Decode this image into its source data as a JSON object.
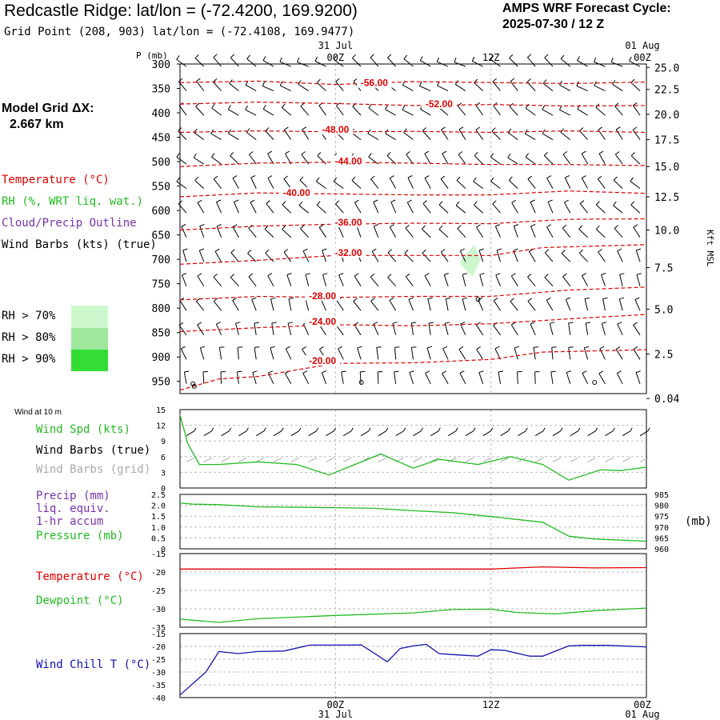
{
  "header": {
    "title": "Redcastle Ridge:  lat/lon = (-72.4200, 169.9200)",
    "grid_point": "Grid Point (208, 903) lat/lon = (-72.4108, 169.9477)",
    "forecast_label": "AMPS WRF Forecast Cycle:",
    "forecast_cycle": "2025-07-30 / 12  Z",
    "model_grid_label": "Model Grid ΔX:",
    "model_grid_value": "2.667 km"
  },
  "legend": {
    "temperature": "Temperature (°C)",
    "rh": "RH (%, WRT liq. wat.)",
    "cloud": "Cloud/Precip Outline",
    "wind_barbs": "Wind Barbs (kts) (true)",
    "rh70": "RH > 70%",
    "rh80": "RH > 80%",
    "rh90": "RH > 90%"
  },
  "colors": {
    "temperature": "#dd0000",
    "rh": "#22bb22",
    "cloud": "#7733aa",
    "windchill": "#1111aa",
    "rh70": "#ccf7cc",
    "rh80": "#9de89d",
    "rh90": "#33dd33",
    "grid": "#bbbbbb",
    "gray_barb": "#aaaaaa"
  },
  "time_axis": {
    "top_date_labels": [
      "31 Jul",
      "01 Aug"
    ],
    "tick_labels": [
      "00Z",
      "12Z",
      "00Z"
    ],
    "bottom_date_labels": [
      "31 Jul",
      "01 Aug"
    ],
    "hours": [
      12,
      24,
      36,
      48
    ],
    "start_hour": 12,
    "end_hour": 48
  },
  "chart_data": [
    {
      "type": "line",
      "panel": "upper-air cross-section",
      "y_axis_title": "P (mb)",
      "pressure_ticks": [
        300,
        350,
        400,
        450,
        500,
        550,
        600,
        650,
        700,
        750,
        800,
        850,
        900,
        950
      ],
      "ylim": [
        975,
        300
      ],
      "right_axis_title": "Kft MSL",
      "height_ticks": [
        "25.0",
        "22.5",
        "20.0",
        "17.5",
        "15.0",
        "12.5",
        "10.0",
        "7.5",
        "5.0",
        "2.5",
        "0.04"
      ],
      "height_tick_pressures": [
        307,
        352,
        403,
        455,
        510,
        572,
        640,
        717,
        802,
        894,
        985
      ],
      "isotherm_labels": [
        {
          "label": "-56.00",
          "hour": 27,
          "p": 342
        },
        {
          "label": "-52.00",
          "hour": 32,
          "p": 385
        },
        {
          "label": "-48.00",
          "hour": 24,
          "p": 438
        },
        {
          "label": "-44.00",
          "hour": 25,
          "p": 502
        },
        {
          "label": "-40.00",
          "hour": 21,
          "p": 567
        },
        {
          "label": "-36.00",
          "hour": 25,
          "p": 628
        },
        {
          "label": "-32.00",
          "hour": 25,
          "p": 690
        },
        {
          "label": "-28.00",
          "hour": 23,
          "p": 778
        },
        {
          "label": "-24.00",
          "hour": 23,
          "p": 831
        },
        {
          "label": "-20.00",
          "hour": 23,
          "p": 911
        }
      ],
      "isotherms": [
        {
          "hour": [
            12,
            18,
            24,
            30,
            36,
            42,
            48
          ],
          "p": [
            338,
            335,
            342,
            336,
            338,
            340,
            337
          ]
        },
        {
          "hour": [
            12,
            18,
            24,
            30,
            36,
            42,
            48
          ],
          "p": [
            382,
            378,
            381,
            385,
            383,
            386,
            385
          ]
        },
        {
          "hour": [
            12,
            18,
            24,
            30,
            36,
            42,
            48
          ],
          "p": [
            440,
            437,
            439,
            438,
            440,
            437,
            440
          ]
        },
        {
          "hour": [
            12,
            18,
            24,
            30,
            36,
            42,
            48
          ],
          "p": [
            510,
            503,
            501,
            503,
            506,
            506,
            508
          ]
        },
        {
          "hour": [
            12,
            18,
            24,
            30,
            36,
            42,
            48
          ],
          "p": [
            572,
            564,
            566,
            568,
            568,
            560,
            565
          ]
        },
        {
          "hour": [
            12,
            18,
            24,
            30,
            36,
            42,
            48
          ],
          "p": [
            640,
            632,
            628,
            626,
            627,
            618,
            617
          ]
        },
        {
          "hour": [
            12,
            18,
            24,
            30,
            36,
            40,
            48
          ],
          "p": [
            710,
            702,
            692,
            692,
            692,
            676,
            670
          ]
        },
        {
          "hour": [
            12,
            18,
            24,
            30,
            36,
            42,
            48
          ],
          "p": [
            783,
            776,
            778,
            776,
            776,
            763,
            757
          ]
        },
        {
          "hour": [
            12,
            18,
            24,
            30,
            36,
            42,
            48
          ],
          "p": [
            848,
            840,
            834,
            836,
            832,
            822,
            813
          ]
        },
        {
          "hour": [
            12,
            15,
            18,
            24,
            30,
            36,
            40,
            48
          ],
          "p": [
            968,
            945,
            940,
            913,
            912,
            905,
            890,
            885
          ]
        }
      ],
      "rh_shading": [
        {
          "level": "rh70",
          "hour": [
            33.6,
            34.7,
            35.2,
            34.6,
            33.7
          ],
          "p": [
            705,
            670,
            700,
            735,
            712
          ]
        }
      ],
      "cloud_markers": [
        {
          "hour": 13.0,
          "p": 955
        },
        {
          "hour": 13.1,
          "p": 960
        },
        {
          "hour": 26.0,
          "p": 952
        },
        {
          "hour": 35.0,
          "p": 782
        },
        {
          "hour": 44.0,
          "p": 952
        }
      ]
    },
    {
      "type": "line",
      "panel": "Wind at 10 m",
      "title": "Wind at 10 m",
      "labels": {
        "speed": "Wind Spd (kts)",
        "barbs_true": "Wind Barbs (true)",
        "barbs_grid": "Wind Barbs (grid)"
      },
      "ylim": [
        0,
        15
      ],
      "y_ticks": [
        0,
        3,
        6,
        9,
        12,
        15
      ],
      "series": [
        {
          "name": "Wind Spd (kts)",
          "hour": [
            12,
            12.6,
            13.5,
            15,
            18,
            21,
            23.5,
            25,
            27.5,
            30,
            32,
            35,
            37.5,
            40,
            42,
            44.5,
            46,
            48
          ],
          "values": [
            14,
            8.5,
            4.5,
            4.5,
            5,
            4.5,
            2.5,
            4,
            6.5,
            3.8,
            5.5,
            4.5,
            6,
            4.5,
            1.5,
            3.5,
            3.3,
            4
          ]
        }
      ]
    },
    {
      "type": "line",
      "panel": "Precip / Pressure",
      "labels": {
        "precip": "Precip (mm)",
        "liq": "liq. equiv.",
        "accum": "1-hr accum",
        "pressure": "Pressure (mb)",
        "right_unit": "(mb)"
      },
      "y_ticks_left": [
        "0",
        "0.5",
        "1.0",
        "1.5",
        "2.0",
        "2.5"
      ],
      "ylim_left": [
        0,
        2.5
      ],
      "y_ticks_right": [
        "960",
        "965",
        "970",
        "975",
        "980",
        "985"
      ],
      "ylim_right": [
        960,
        985
      ],
      "series": [
        {
          "name": "Pressure (mb)",
          "hour": [
            12,
            13,
            15,
            18,
            24,
            27,
            30,
            33,
            36,
            40,
            42,
            44,
            48
          ],
          "values": [
            981,
            980.5,
            980.3,
            979.3,
            978.9,
            978.6,
            977.5,
            976.6,
            974.8,
            972.2,
            965.8,
            964.5,
            963.5
          ]
        }
      ]
    },
    {
      "type": "line",
      "panel": "Temperature / Dewpoint",
      "labels": {
        "temperature": "Temperature (°C)",
        "dewpoint": "Dewpoint (°C)"
      },
      "ylim": [
        -35,
        -15
      ],
      "y_ticks": [
        -15,
        -20,
        -25,
        -30,
        -35
      ],
      "series": [
        {
          "name": "Temperature (°C)",
          "hour": [
            12,
            36,
            40,
            44,
            48
          ],
          "values": [
            -19.2,
            -19.2,
            -18.6,
            -18.9,
            -18.8
          ]
        },
        {
          "name": "Dewpoint (°C)",
          "hour": [
            12,
            15,
            18,
            24,
            30,
            33,
            36,
            38,
            41,
            44,
            48
          ],
          "values": [
            -32.8,
            -33.7,
            -32.7,
            -31.8,
            -31.1,
            -30.2,
            -30.1,
            -31.0,
            -31.4,
            -30.5,
            -29.8
          ]
        }
      ]
    },
    {
      "type": "line",
      "panel": "Wind Chill",
      "labels": {
        "windchill": "Wind Chill T (°C)"
      },
      "ylim": [
        -40,
        -15
      ],
      "y_ticks": [
        -15,
        -20,
        -25,
        -30,
        -35,
        -40
      ],
      "series": [
        {
          "name": "Wind Chill T (°C)",
          "hour": [
            12,
            14,
            15,
            16.5,
            18,
            20,
            22,
            24,
            26,
            28,
            29,
            30,
            31,
            32,
            33,
            35,
            36,
            37,
            39,
            40,
            42,
            43,
            45,
            48
          ],
          "values": [
            -39,
            -30,
            -22,
            -22.8,
            -22,
            -21.8,
            -19.5,
            -19.5,
            -19.4,
            -26,
            -20.8,
            -19.8,
            -19.2,
            -22.8,
            -23.2,
            -23.8,
            -21.3,
            -21.5,
            -23.8,
            -23.8,
            -19.8,
            -19.6,
            -19.6,
            -20.2
          ]
        }
      ]
    }
  ]
}
